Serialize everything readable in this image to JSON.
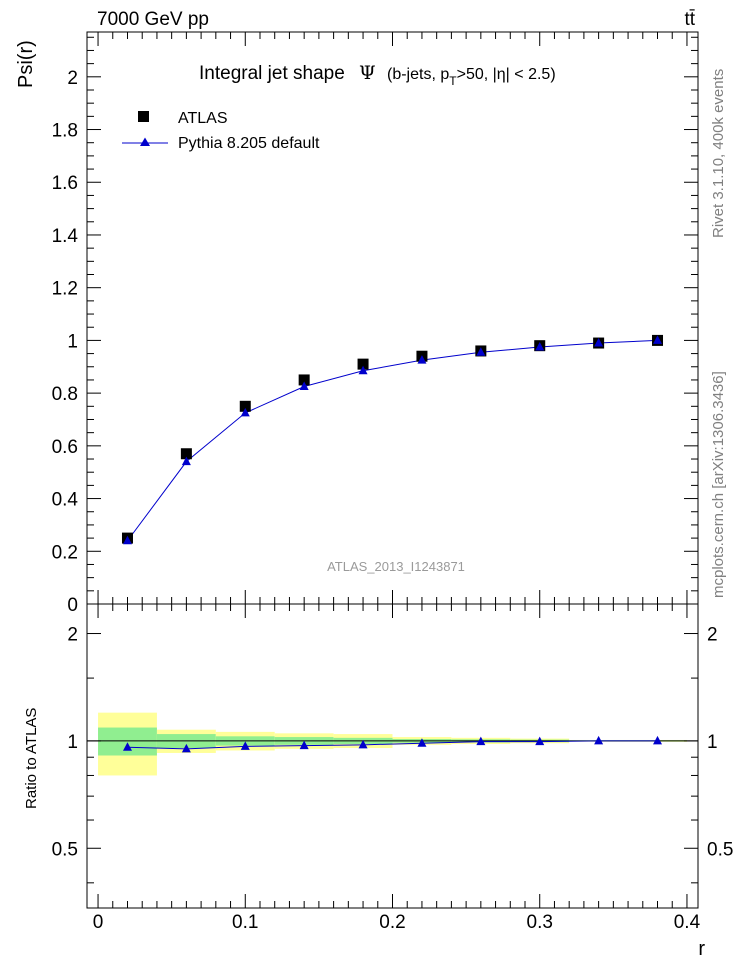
{
  "header": {
    "energy_label": "7000 GeV pp",
    "process_label": "tt̄"
  },
  "side_labels": {
    "rivet": "Rivet 3.1.10,  400k events",
    "mcplots": "mcplots.cern.ch [arXiv:1306.3436]"
  },
  "chart_data": {
    "type": "scatter",
    "title": "Integral jet shape",
    "title_symbol": "Ψ",
    "title_detail": "(b-jets, p",
    "title_sub": "T",
    "title_tail": ">50, |η| < 2.5)",
    "xlabel": "r",
    "ylabel": "Psi(r)",
    "ratio_ylabel": "Ratio to ATLAS",
    "watermark": "ATLAS_2013_I1243871",
    "xlim": [
      -0.0075,
      0.4075
    ],
    "ylim": [
      0,
      2.17
    ],
    "ratio_ylim": [
      0.34,
      2.42
    ],
    "x_ticks": [
      "0",
      "0.1",
      "0.2",
      "0.3",
      "0.4"
    ],
    "x_tick_values": [
      0,
      0.1,
      0.2,
      0.3,
      0.4
    ],
    "y_ticks": [
      "0",
      "0.2",
      "0.4",
      "0.6",
      "0.8",
      "1",
      "1.2",
      "1.4",
      "1.6",
      "1.8",
      "2"
    ],
    "y_tick_values": [
      0,
      0.2,
      0.4,
      0.6,
      0.8,
      1,
      1.2,
      1.4,
      1.6,
      1.8,
      2
    ],
    "ratio_ticks": [
      "0.5",
      "1",
      "2"
    ],
    "ratio_tick_values": [
      0.5,
      1,
      2
    ],
    "x": [
      0.02,
      0.06,
      0.1,
      0.14,
      0.18,
      0.22,
      0.26,
      0.3,
      0.34,
      0.38
    ],
    "bins": [
      [
        0,
        0.04
      ],
      [
        0.04,
        0.08
      ],
      [
        0.08,
        0.12
      ],
      [
        0.12,
        0.16
      ],
      [
        0.16,
        0.2
      ],
      [
        0.2,
        0.24
      ],
      [
        0.24,
        0.28
      ],
      [
        0.28,
        0.32
      ],
      [
        0.32,
        0.36
      ],
      [
        0.36,
        0.4
      ]
    ],
    "series": [
      {
        "name": "ATLAS",
        "marker": "square",
        "color": "#000000",
        "values": [
          0.25,
          0.57,
          0.75,
          0.85,
          0.91,
          0.94,
          0.96,
          0.98,
          0.99,
          1.0
        ]
      },
      {
        "name": "Pythia 8.205 default",
        "marker": "triangle",
        "color": "#0000cc",
        "values": [
          0.24,
          0.54,
          0.725,
          0.825,
          0.885,
          0.925,
          0.955,
          0.975,
          0.99,
          1.0
        ]
      }
    ],
    "ratio": [
      0.96,
      0.95,
      0.965,
      0.97,
      0.975,
      0.985,
      0.995,
      0.995,
      1.0,
      1.0
    ],
    "band_inner": [
      0.09,
      0.045,
      0.03,
      0.025,
      0.02,
      0.012,
      0.01,
      0.008,
      0.004,
      0.004
    ],
    "band_outer": [
      0.2,
      0.075,
      0.06,
      0.05,
      0.045,
      0.025,
      0.02,
      0.015,
      0.006,
      0.006
    ],
    "band_colors": {
      "inner": "#90ee90",
      "outer": "#ffff99"
    }
  }
}
